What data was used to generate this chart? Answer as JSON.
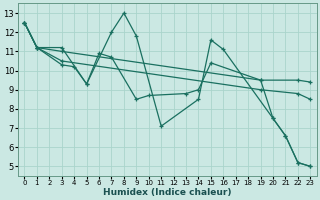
{
  "xlabel": "Humidex (Indice chaleur)",
  "ylabel": "",
  "bg_color": "#cbe8e3",
  "grid_color": "#aad4cc",
  "line_color": "#1a7060",
  "xlim": [
    -0.5,
    23.5
  ],
  "ylim": [
    4.5,
    13.5
  ],
  "xticks": [
    0,
    1,
    2,
    3,
    4,
    5,
    6,
    7,
    8,
    9,
    10,
    11,
    12,
    13,
    14,
    15,
    16,
    17,
    18,
    19,
    20,
    21,
    22,
    23
  ],
  "yticks": [
    5,
    6,
    7,
    8,
    9,
    10,
    11,
    12,
    13
  ],
  "series": [
    {
      "x": [
        0,
        1,
        3,
        5,
        7,
        8,
        9,
        11,
        14,
        15,
        16,
        20,
        21,
        22,
        23
      ],
      "y": [
        12.5,
        11.2,
        11.2,
        9.3,
        12.0,
        13.0,
        11.8,
        7.1,
        8.5,
        11.6,
        11.1,
        7.5,
        6.6,
        5.2,
        5.0
      ]
    },
    {
      "x": [
        0,
        1,
        3,
        4,
        5,
        6,
        7,
        9,
        10,
        13,
        14,
        15,
        19,
        20,
        21,
        22,
        23
      ],
      "y": [
        12.5,
        11.2,
        10.3,
        10.2,
        9.3,
        10.9,
        10.7,
        8.5,
        8.7,
        8.8,
        9.0,
        10.4,
        9.5,
        7.5,
        6.6,
        5.2,
        5.0
      ]
    },
    {
      "x": [
        0,
        1,
        3,
        19,
        22,
        23
      ],
      "y": [
        12.5,
        11.2,
        11.0,
        9.5,
        9.5,
        9.4
      ]
    },
    {
      "x": [
        0,
        1,
        3,
        19,
        22,
        23
      ],
      "y": [
        12.5,
        11.2,
        10.5,
        9.0,
        8.8,
        8.5
      ]
    }
  ]
}
